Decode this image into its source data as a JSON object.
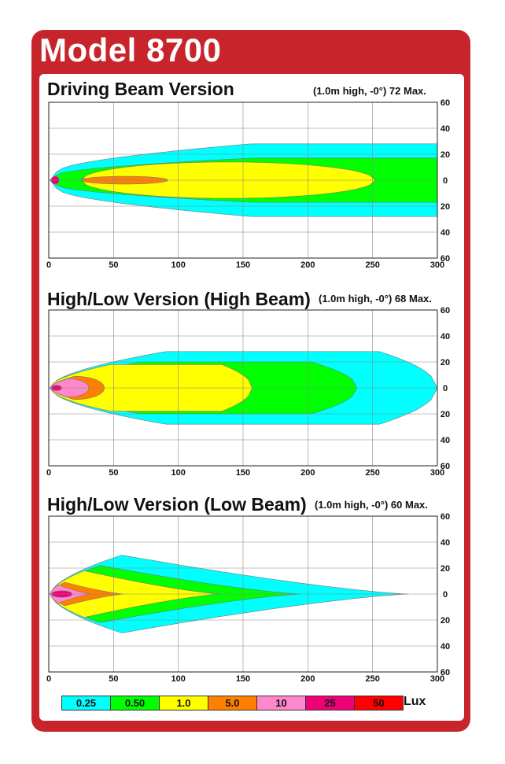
{
  "title": "Model 8700",
  "colors": {
    "frame": "#c8242b",
    "lux_0_25": "#00ffff",
    "lux_0_50": "#00ff00",
    "lux_1_0": "#ffff00",
    "lux_5_0": "#ff8000",
    "lux_10": "#ff88cc",
    "lux_25": "#ee0077",
    "lux_50": "#ff0000"
  },
  "legend": {
    "unit": "Lux",
    "items": [
      {
        "label": "0.25",
        "color": "#00ffff"
      },
      {
        "label": "0.50",
        "color": "#00ff00"
      },
      {
        "label": "1.0",
        "color": "#ffff00"
      },
      {
        "label": "5.0",
        "color": "#ff8000"
      },
      {
        "label": "10",
        "color": "#ff88cc"
      },
      {
        "label": "25",
        "color": "#ee0077"
      },
      {
        "label": "50",
        "color": "#ff0000"
      }
    ]
  },
  "chart_data": [
    {
      "type": "area",
      "title": "Driving Beam Version",
      "note": "(1.0m high, -0°)  72 Max.",
      "xlim": [
        0,
        300
      ],
      "ylim": [
        -60,
        60
      ],
      "x_ticks": [
        "0",
        "50",
        "100",
        "150",
        "200",
        "250",
        "300"
      ],
      "y_ticks": [
        "60",
        "40",
        "20",
        "0",
        "20",
        "40",
        "60"
      ],
      "grid": true,
      "series": [
        {
          "name": "0.25",
          "color": "#00ffff",
          "reach": 300,
          "width": 28,
          "shape": "long"
        },
        {
          "name": "0.50",
          "color": "#00ff00",
          "reach": 300,
          "width": 17,
          "shape": "long"
        },
        {
          "name": "1.0",
          "color": "#ffff00",
          "reach": 252,
          "width": 14,
          "shape": "ellipse"
        },
        {
          "name": "5.0",
          "color": "#ff8000",
          "reach": 92,
          "width": 3,
          "shape": "ellipse"
        },
        {
          "name": "25",
          "color": "#ee0077",
          "reach": 8,
          "width": 3,
          "shape": "ellipse"
        }
      ]
    },
    {
      "type": "area",
      "title": "High/Low Version (High Beam)",
      "note": "(1.0m high, -0°)  68 Max.",
      "xlim": [
        0,
        300
      ],
      "ylim": [
        -60,
        60
      ],
      "x_ticks": [
        "0",
        "50",
        "100",
        "150",
        "200",
        "250",
        "300"
      ],
      "y_ticks": [
        "60",
        "40",
        "20",
        "0",
        "20",
        "40",
        "60"
      ],
      "grid": true,
      "series": [
        {
          "name": "0.25",
          "color": "#00ffff",
          "reach": 300,
          "width": 28,
          "shape": "wide"
        },
        {
          "name": "0.50",
          "color": "#00ff00",
          "reach": 238,
          "width": 20,
          "shape": "wide"
        },
        {
          "name": "1.0",
          "color": "#ffff00",
          "reach": 157,
          "width": 18,
          "shape": "wide"
        },
        {
          "name": "5.0",
          "color": "#ff8000",
          "reach": 43,
          "width": 9,
          "shape": "bulb"
        },
        {
          "name": "10",
          "color": "#ff88cc",
          "reach": 31,
          "width": 7,
          "shape": "bulb"
        },
        {
          "name": "25",
          "color": "#ee0077",
          "reach": 10,
          "width": 2,
          "shape": "ellipse"
        }
      ]
    },
    {
      "type": "area",
      "title": "High/Low Version (Low Beam)",
      "note": "(1.0m high, -0°)  60 Max.",
      "xlim": [
        0,
        300
      ],
      "ylim": [
        -60,
        60
      ],
      "x_ticks": [
        "0",
        "50",
        "100",
        "150",
        "200",
        "250",
        "300"
      ],
      "y_ticks": [
        "60",
        "40",
        "20",
        "0",
        "20",
        "40",
        "60"
      ],
      "grid": true,
      "series": [
        {
          "name": "0.25",
          "color": "#00ffff",
          "reach": 278,
          "width": 30,
          "shape": "taper"
        },
        {
          "name": "0.50",
          "color": "#00ff00",
          "reach": 195,
          "width": 22,
          "shape": "taper"
        },
        {
          "name": "1.0",
          "color": "#ffff00",
          "reach": 133,
          "width": 18,
          "shape": "taper"
        },
        {
          "name": "5.0",
          "color": "#ff8000",
          "reach": 58,
          "width": 9,
          "shape": "taper"
        },
        {
          "name": "10",
          "color": "#ff88cc",
          "reach": 33,
          "width": 7,
          "shape": "taper"
        },
        {
          "name": "25",
          "color": "#ee0077",
          "reach": 18,
          "width": 2.5,
          "shape": "ellipse"
        }
      ]
    }
  ]
}
